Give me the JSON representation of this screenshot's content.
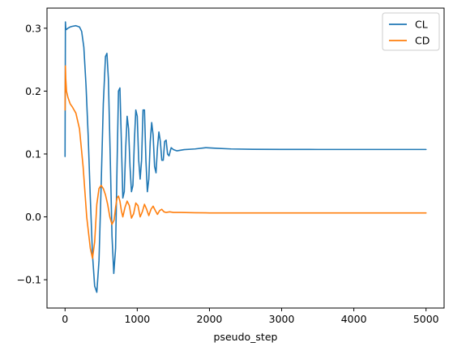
{
  "chart_data": {
    "type": "line",
    "xlabel": "pseudo_step",
    "ylabel": "",
    "xlim": [
      -250,
      5250
    ],
    "ylim": [
      -0.145,
      0.332
    ],
    "x_ticks": [
      0,
      1000,
      2000,
      3000,
      4000,
      5000
    ],
    "x_tick_labels": [
      "0",
      "1000",
      "2000",
      "3000",
      "4000",
      "5000"
    ],
    "y_ticks": [
      -0.1,
      0.0,
      0.1,
      0.2,
      0.3
    ],
    "y_tick_labels": [
      "−0.1",
      "0.0",
      "0.1",
      "0.2",
      "0.3"
    ],
    "grid": false,
    "legend_position": "top-right",
    "series": [
      {
        "name": "CL",
        "color": "#1f77b4",
        "x": [
          0,
          5,
          10,
          20,
          40,
          70,
          100,
          150,
          200,
          230,
          260,
          290,
          320,
          350,
          380,
          410,
          440,
          470,
          500,
          530,
          560,
          580,
          600,
          625,
          650,
          675,
          700,
          720,
          740,
          760,
          780,
          800,
          820,
          840,
          860,
          880,
          900,
          920,
          940,
          960,
          980,
          1000,
          1020,
          1040,
          1060,
          1080,
          1100,
          1120,
          1140,
          1160,
          1180,
          1200,
          1220,
          1240,
          1260,
          1280,
          1300,
          1320,
          1340,
          1360,
          1380,
          1400,
          1420,
          1440,
          1470,
          1500,
          1550,
          1650,
          1800,
          1950,
          2100,
          2300,
          2600,
          3000,
          3500,
          4000,
          4500,
          5000
        ],
        "values": [
          0.096,
          0.31,
          0.3,
          0.298,
          0.3,
          0.302,
          0.303,
          0.304,
          0.302,
          0.295,
          0.27,
          0.21,
          0.13,
          0.03,
          -0.06,
          -0.11,
          -0.12,
          -0.07,
          0.05,
          0.18,
          0.255,
          0.26,
          0.22,
          0.1,
          -0.03,
          -0.09,
          -0.05,
          0.08,
          0.2,
          0.205,
          0.12,
          0.03,
          0.04,
          0.11,
          0.16,
          0.14,
          0.08,
          0.04,
          0.05,
          0.12,
          0.17,
          0.16,
          0.09,
          0.06,
          0.09,
          0.17,
          0.17,
          0.09,
          0.04,
          0.06,
          0.12,
          0.15,
          0.13,
          0.08,
          0.07,
          0.11,
          0.135,
          0.12,
          0.09,
          0.09,
          0.12,
          0.122,
          0.1,
          0.097,
          0.11,
          0.107,
          0.105,
          0.107,
          0.108,
          0.11,
          0.109,
          0.108,
          0.1075,
          0.1073,
          0.1072,
          0.1072,
          0.1072,
          0.1072
        ]
      },
      {
        "name": "CD",
        "color": "#ff7f0e",
        "x": [
          0,
          5,
          10,
          20,
          40,
          70,
          100,
          150,
          200,
          250,
          300,
          350,
          380,
          410,
          440,
          470,
          500,
          530,
          560,
          590,
          620,
          650,
          680,
          700,
          720,
          740,
          760,
          780,
          800,
          830,
          860,
          890,
          920,
          950,
          980,
          1010,
          1040,
          1070,
          1100,
          1130,
          1160,
          1190,
          1220,
          1250,
          1280,
          1310,
          1340,
          1370,
          1400,
          1450,
          1500,
          1600,
          1800,
          2000,
          2500,
          3000,
          3500,
          4000,
          4500,
          5000
        ],
        "values": [
          0.17,
          0.24,
          0.22,
          0.2,
          0.19,
          0.18,
          0.175,
          0.165,
          0.14,
          0.08,
          0.0,
          -0.05,
          -0.066,
          -0.04,
          0.02,
          0.045,
          0.05,
          0.045,
          0.035,
          0.02,
          0.0,
          -0.012,
          -0.005,
          0.015,
          0.03,
          0.033,
          0.025,
          0.01,
          0.0,
          0.015,
          0.025,
          0.018,
          -0.002,
          0.005,
          0.022,
          0.018,
          0.0,
          0.008,
          0.02,
          0.012,
          0.002,
          0.012,
          0.017,
          0.01,
          0.004,
          0.01,
          0.012,
          0.008,
          0.007,
          0.008,
          0.007,
          0.007,
          0.0065,
          0.0063,
          0.0062,
          0.0062,
          0.0062,
          0.0062,
          0.0062,
          0.0062
        ]
      }
    ]
  }
}
